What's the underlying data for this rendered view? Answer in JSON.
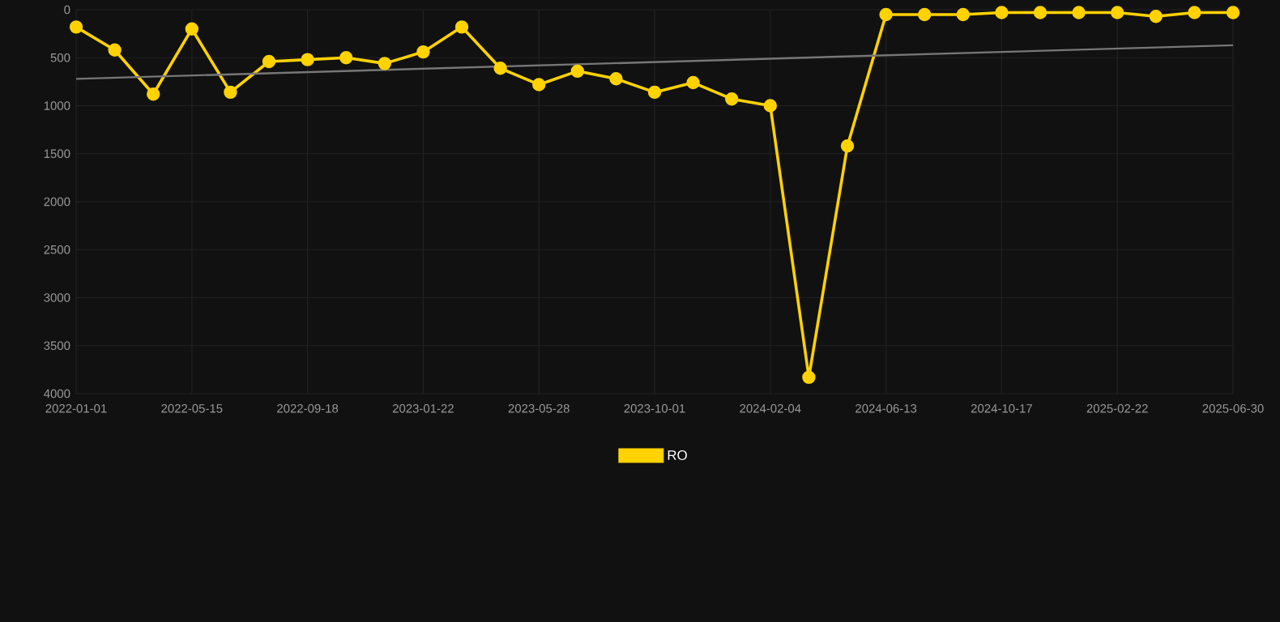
{
  "chart_data": {
    "type": "line",
    "categories": [
      "2022-01-01",
      null,
      null,
      "2022-05-15",
      null,
      null,
      "2022-09-18",
      null,
      null,
      "2023-01-22",
      null,
      null,
      "2023-05-28",
      null,
      null,
      "2023-10-01",
      null,
      null,
      "2024-02-04",
      null,
      null,
      "2024-06-13",
      null,
      null,
      "2024-10-17",
      null,
      null,
      "2025-02-22",
      null,
      null,
      "2025-06-30"
    ],
    "series": [
      {
        "name": "RO",
        "color": "#ffd200",
        "values": [
          180,
          420,
          880,
          200,
          860,
          540,
          520,
          500,
          560,
          440,
          180,
          610,
          780,
          640,
          720,
          860,
          760,
          930,
          1000,
          3830,
          1420,
          50,
          50,
          50,
          30,
          30,
          30,
          30,
          70,
          30,
          30
        ]
      },
      {
        "type": "line",
        "color": "#777777",
        "marker": "none",
        "values": [
          720,
          null,
          null,
          null,
          null,
          null,
          null,
          null,
          null,
          null,
          null,
          null,
          null,
          null,
          null,
          null,
          null,
          null,
          null,
          null,
          null,
          null,
          null,
          null,
          null,
          null,
          null,
          null,
          null,
          null,
          370
        ]
      }
    ],
    "ylim": [
      4000,
      0
    ],
    "yticks": [
      0,
      500,
      1000,
      1500,
      2000,
      2500,
      3000,
      3500,
      4000
    ],
    "grid": true,
    "legend": "bottom",
    "marker": "circle",
    "line_style": "solid"
  }
}
